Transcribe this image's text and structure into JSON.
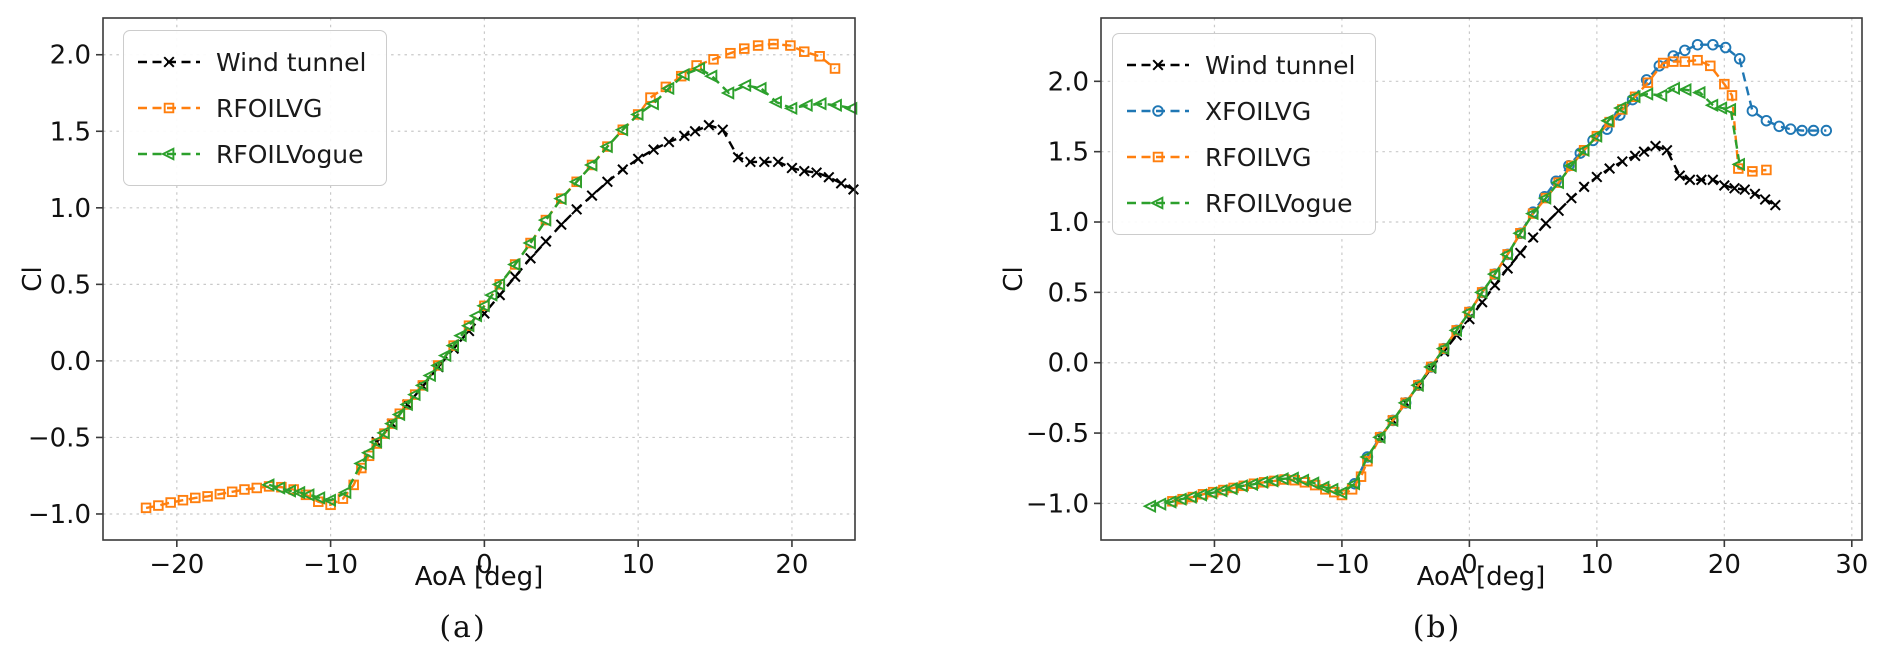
{
  "chart_data": [
    {
      "type": "line",
      "caption": "(a)",
      "xlabel": "AoA [deg]",
      "ylabel": "Cl",
      "xlim": [
        -24.8,
        24.1
      ],
      "ylim": [
        -1.17,
        2.24
      ],
      "xticks": [
        -20,
        -10,
        0,
        10,
        20
      ],
      "yticks": [
        -1.0,
        -0.5,
        0.0,
        0.5,
        1.0,
        1.5,
        2.0
      ],
      "grid": true,
      "legend_position": "upper-left",
      "series": [
        {
          "name": "Wind tunnel",
          "color": "#000000",
          "marker": "x",
          "linestyle": "dashed",
          "x": [
            -7,
            -6,
            -5,
            -4,
            -3,
            -2,
            -1,
            0,
            1,
            2,
            3,
            4,
            5,
            6,
            7,
            8,
            9,
            10,
            11,
            12,
            13,
            13.7,
            14.6,
            15.5,
            16.5,
            17.3,
            18.2,
            19.1,
            20,
            20.8,
            21.6,
            22.4,
            23.2,
            24
          ],
          "y": [
            -0.53,
            -0.41,
            -0.285,
            -0.165,
            -0.04,
            0.08,
            0.195,
            0.31,
            0.43,
            0.55,
            0.67,
            0.78,
            0.89,
            0.99,
            1.08,
            1.17,
            1.25,
            1.32,
            1.38,
            1.43,
            1.47,
            1.5,
            1.54,
            1.51,
            1.33,
            1.3,
            1.3,
            1.3,
            1.26,
            1.24,
            1.23,
            1.2,
            1.16,
            1.12
          ]
        },
        {
          "name": "RFOILVG",
          "color": "#ff7f0e",
          "marker": "square",
          "linestyle": "dashed",
          "x": [
            -22,
            -21.2,
            -20.4,
            -19.6,
            -18.8,
            -18,
            -17.2,
            -16.4,
            -15.6,
            -14.8,
            -14,
            -13.2,
            -12.4,
            -11.6,
            -10.8,
            -10,
            -9.2,
            -8.5,
            -8,
            -7.5,
            -7,
            -6.5,
            -6,
            -5.5,
            -5,
            -4.5,
            -4,
            -3,
            -2,
            -1,
            0,
            1,
            2,
            3,
            4,
            5,
            6,
            7,
            8,
            9,
            10,
            10.8,
            11.8,
            12.8,
            13.8,
            14.9,
            16,
            16.9,
            17.8,
            18.8,
            19.9,
            20.8,
            21.8,
            22.8
          ],
          "y": [
            -0.96,
            -0.945,
            -0.925,
            -0.91,
            -0.895,
            -0.885,
            -0.87,
            -0.855,
            -0.84,
            -0.83,
            -0.82,
            -0.825,
            -0.84,
            -0.875,
            -0.92,
            -0.94,
            -0.9,
            -0.81,
            -0.7,
            -0.62,
            -0.54,
            -0.475,
            -0.41,
            -0.345,
            -0.285,
            -0.22,
            -0.16,
            -0.03,
            0.1,
            0.23,
            0.36,
            0.5,
            0.63,
            0.77,
            0.92,
            1.06,
            1.17,
            1.28,
            1.4,
            1.51,
            1.61,
            1.72,
            1.79,
            1.86,
            1.93,
            1.97,
            2.01,
            2.04,
            2.06,
            2.07,
            2.06,
            2.02,
            1.99,
            1.91
          ]
        },
        {
          "name": "RFOILVogue",
          "color": "#2ca02c",
          "marker": "triangle-left",
          "linestyle": "dashed",
          "x": [
            -14,
            -13.3,
            -12.6,
            -12,
            -11.4,
            -10.7,
            -10,
            -9,
            -8,
            -7.5,
            -7,
            -6.5,
            -6,
            -5.5,
            -5,
            -4.5,
            -4,
            -3.5,
            -3,
            -2.5,
            -2,
            -1.5,
            -1,
            -0.5,
            0,
            0.5,
            1,
            2,
            3,
            4,
            5,
            6,
            7,
            8,
            9,
            10,
            11,
            12,
            13,
            14,
            14.8,
            15.9,
            17,
            18,
            19,
            20,
            21,
            21.9,
            22.9,
            23.9
          ],
          "y": [
            -0.81,
            -0.83,
            -0.85,
            -0.86,
            -0.875,
            -0.895,
            -0.91,
            -0.86,
            -0.67,
            -0.6,
            -0.53,
            -0.47,
            -0.41,
            -0.35,
            -0.285,
            -0.22,
            -0.16,
            -0.095,
            -0.03,
            0.035,
            0.1,
            0.165,
            0.23,
            0.295,
            0.36,
            0.43,
            0.5,
            0.63,
            0.77,
            0.92,
            1.06,
            1.17,
            1.28,
            1.4,
            1.51,
            1.61,
            1.68,
            1.78,
            1.87,
            1.91,
            1.86,
            1.75,
            1.8,
            1.78,
            1.69,
            1.65,
            1.67,
            1.68,
            1.67,
            1.65
          ]
        }
      ]
    },
    {
      "type": "line",
      "caption": "(b)",
      "xlabel": "AoA [deg]",
      "ylabel": "Cl",
      "xlim": [
        -28.9,
        30.8
      ],
      "ylim": [
        -1.26,
        2.45
      ],
      "xticks": [
        -20,
        -10,
        0,
        10,
        20,
        30
      ],
      "yticks": [
        -1.0,
        -0.5,
        0.0,
        0.5,
        1.0,
        1.5,
        2.0
      ],
      "grid": true,
      "legend_position": "upper-left",
      "series": [
        {
          "name": "Wind tunnel",
          "color": "#000000",
          "marker": "x",
          "linestyle": "dashed",
          "x": [
            -7,
            -6,
            -5,
            -4,
            -3,
            -2,
            -1,
            0,
            1,
            2,
            3,
            4,
            5,
            6,
            7,
            8,
            9,
            10,
            11,
            12,
            13,
            13.7,
            14.6,
            15.5,
            16.5,
            17.3,
            18.2,
            19.1,
            20,
            20.8,
            21.6,
            22.4,
            23.2,
            24
          ],
          "y": [
            -0.53,
            -0.41,
            -0.285,
            -0.165,
            -0.04,
            0.08,
            0.195,
            0.31,
            0.43,
            0.55,
            0.67,
            0.78,
            0.89,
            0.99,
            1.08,
            1.17,
            1.25,
            1.32,
            1.38,
            1.43,
            1.47,
            1.5,
            1.54,
            1.51,
            1.33,
            1.3,
            1.3,
            1.3,
            1.26,
            1.24,
            1.23,
            1.2,
            1.16,
            1.12
          ]
        },
        {
          "name": "XFOILVG",
          "color": "#1f77b4",
          "marker": "circle",
          "linestyle": "dashed",
          "x": [
            -9,
            -8,
            -7,
            -6,
            -5,
            -4,
            -3,
            -2,
            -1,
            0,
            1,
            2,
            3,
            4,
            5,
            5.9,
            6.8,
            7.8,
            8.7,
            9.7,
            10.8,
            11.8,
            12.8,
            13.9,
            14.9,
            16,
            16.9,
            17.9,
            19.1,
            20.1,
            21.2,
            22.2,
            23.3,
            24.3,
            25.2,
            26.1,
            27,
            28
          ],
          "y": [
            -0.86,
            -0.67,
            -0.53,
            -0.41,
            -0.285,
            -0.16,
            -0.03,
            0.1,
            0.23,
            0.36,
            0.5,
            0.63,
            0.77,
            0.92,
            1.07,
            1.18,
            1.29,
            1.4,
            1.49,
            1.58,
            1.66,
            1.76,
            1.87,
            2.01,
            2.11,
            2.18,
            2.22,
            2.26,
            2.26,
            2.24,
            2.16,
            1.79,
            1.72,
            1.68,
            1.66,
            1.65,
            1.65,
            1.65
          ]
        },
        {
          "name": "RFOILVG",
          "color": "#ff7f0e",
          "marker": "square",
          "linestyle": "dashed",
          "x": [
            -23.3,
            -22.5,
            -21.7,
            -20.9,
            -20.1,
            -19.3,
            -18.5,
            -17.7,
            -16.9,
            -16.1,
            -15.3,
            -14.5,
            -13.7,
            -12.9,
            -12.1,
            -11.3,
            -10.6,
            -10,
            -9.2,
            -8.5,
            -8,
            -7,
            -6,
            -5,
            -4,
            -3,
            -2,
            -1,
            0,
            1,
            2,
            3,
            4,
            5,
            6,
            7,
            8,
            9,
            10,
            11,
            12,
            13,
            14,
            15.2,
            16,
            16.9,
            17.9,
            18.9,
            20,
            20.6,
            21.1,
            22.2,
            23.3
          ],
          "y": [
            -0.985,
            -0.97,
            -0.955,
            -0.935,
            -0.92,
            -0.905,
            -0.89,
            -0.875,
            -0.86,
            -0.85,
            -0.84,
            -0.83,
            -0.835,
            -0.85,
            -0.87,
            -0.9,
            -0.92,
            -0.94,
            -0.9,
            -0.81,
            -0.7,
            -0.53,
            -0.41,
            -0.285,
            -0.16,
            -0.03,
            0.1,
            0.23,
            0.36,
            0.5,
            0.63,
            0.77,
            0.92,
            1.06,
            1.17,
            1.28,
            1.4,
            1.51,
            1.61,
            1.71,
            1.8,
            1.89,
            1.99,
            2.13,
            2.14,
            2.14,
            2.15,
            2.11,
            1.98,
            1.9,
            1.38,
            1.36,
            1.37
          ]
        },
        {
          "name": "RFOILVogue",
          "color": "#2ca02c",
          "marker": "triangle-left",
          "linestyle": "dashed",
          "x": [
            -25,
            -24.2,
            -23.4,
            -22.6,
            -21.8,
            -21,
            -20.2,
            -19.4,
            -18.6,
            -17.8,
            -17,
            -16.2,
            -15.4,
            -14.6,
            -13.8,
            -13,
            -12.2,
            -11.4,
            -10.7,
            -10,
            -9,
            -8,
            -7,
            -6,
            -5,
            -4,
            -3,
            -2,
            -1,
            0,
            1,
            2,
            3,
            4,
            5,
            6,
            7,
            8,
            9,
            10,
            10.9,
            11.9,
            13,
            14,
            15.1,
            16.1,
            17,
            18.1,
            19.1,
            19.8,
            20.5,
            21.2
          ],
          "y": [
            -1.02,
            -1.005,
            -0.99,
            -0.97,
            -0.955,
            -0.94,
            -0.925,
            -0.91,
            -0.895,
            -0.875,
            -0.865,
            -0.85,
            -0.84,
            -0.825,
            -0.82,
            -0.835,
            -0.855,
            -0.885,
            -0.9,
            -0.925,
            -0.86,
            -0.67,
            -0.53,
            -0.41,
            -0.285,
            -0.16,
            -0.03,
            0.1,
            0.23,
            0.36,
            0.5,
            0.63,
            0.77,
            0.92,
            1.06,
            1.17,
            1.28,
            1.4,
            1.51,
            1.61,
            1.72,
            1.81,
            1.89,
            1.91,
            1.9,
            1.95,
            1.94,
            1.92,
            1.83,
            1.81,
            1.8,
            1.41
          ]
        }
      ]
    }
  ]
}
